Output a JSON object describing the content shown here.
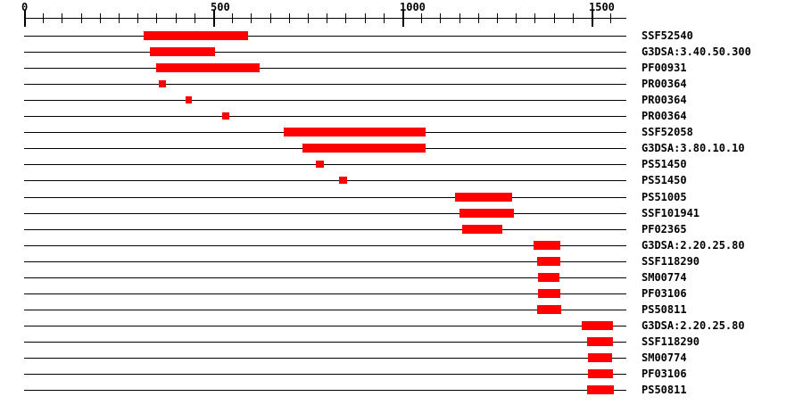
{
  "colors": {
    "bar": "#FF0000",
    "line": "#000000",
    "text": "#000000",
    "background": "#FFFFFF"
  },
  "chart_data": {
    "type": "bar",
    "subtype": "protein-signature-match-tracks",
    "title": "",
    "xlabel": "",
    "ylabel": "",
    "axis": {
      "unit_min": 0,
      "unit_max": 1592,
      "minor_tick_step": 50,
      "major_tick_values": [
        0,
        500,
        1000,
        1500
      ],
      "major_tick_labels": [
        "0",
        "500",
        "1000",
        "1500"
      ]
    },
    "rows": [
      {
        "label": "SSF52540",
        "start": 317,
        "end": 594
      },
      {
        "label": "G3DSA:3.40.50.300",
        "start": 333,
        "end": 505
      },
      {
        "label": "PF00931",
        "start": 349,
        "end": 622
      },
      {
        "label": "PR00364",
        "start": 355,
        "end": 373
      },
      {
        "label": "PR00364",
        "start": 428,
        "end": 445
      },
      {
        "label": "PR00364",
        "start": 524,
        "end": 542
      },
      {
        "label": "SSF52058",
        "start": 687,
        "end": 1063
      },
      {
        "label": "G3DSA:3.80.10.10",
        "start": 737,
        "end": 1063
      },
      {
        "label": "PS51450",
        "start": 772,
        "end": 793
      },
      {
        "label": "PS51450",
        "start": 833,
        "end": 854
      },
      {
        "label": "PS51005",
        "start": 1140,
        "end": 1292
      },
      {
        "label": "SSF101941",
        "start": 1151,
        "end": 1294
      },
      {
        "label": "PF02365",
        "start": 1157,
        "end": 1263
      },
      {
        "label": "G3DSA:2.20.25.80",
        "start": 1347,
        "end": 1417
      },
      {
        "label": "SSF118290",
        "start": 1356,
        "end": 1417
      },
      {
        "label": "SM00774",
        "start": 1358,
        "end": 1415
      },
      {
        "label": "PF03106",
        "start": 1358,
        "end": 1417
      },
      {
        "label": "PS50811",
        "start": 1356,
        "end": 1420
      },
      {
        "label": "G3DSA:2.20.25.80",
        "start": 1474,
        "end": 1557
      },
      {
        "label": "SSF118290",
        "start": 1488,
        "end": 1557
      },
      {
        "label": "SM00774",
        "start": 1491,
        "end": 1554
      },
      {
        "label": "PF03106",
        "start": 1491,
        "end": 1557
      },
      {
        "label": "PS50811",
        "start": 1488,
        "end": 1559
      }
    ]
  }
}
